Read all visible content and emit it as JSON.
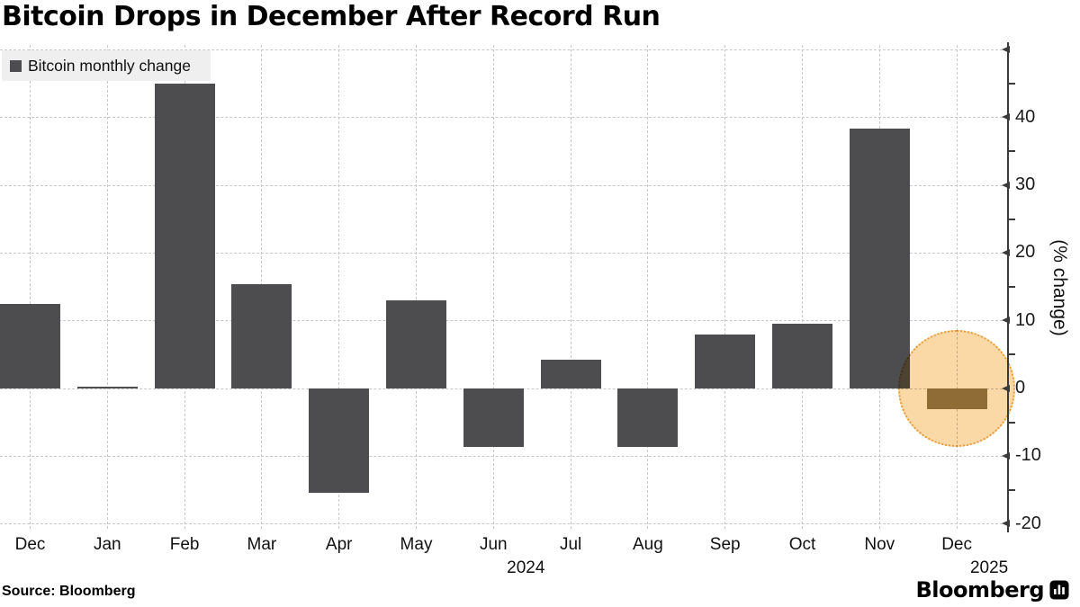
{
  "title": "Bitcoin Drops in December After Record Run",
  "legend": {
    "label": "Bitcoin monthly change"
  },
  "footer": {
    "source": "Source:  Bloomberg"
  },
  "branding": {
    "logo_text": "Bloomberg",
    "logo_icon": "bloomberg-bars-icon"
  },
  "colors": {
    "bar": "#4d4d4f",
    "highlight_bar": "#8f6c35",
    "highlight_circle_fill": "#fbd9a6",
    "highlight_circle_border": "#e89b3a",
    "gridline": "#c8c8c8",
    "axis": "#3a3a3a",
    "legend_bg": "#efefef"
  },
  "chart_data": {
    "type": "bar",
    "title": "Bitcoin Drops in December After Record Run",
    "categories": [
      "Dec",
      "Jan",
      "Feb",
      "Mar",
      "Apr",
      "May",
      "Jun",
      "Jul",
      "Aug",
      "Sep",
      "Oct",
      "Nov",
      "Dec"
    ],
    "values": [
      12.5,
      0.3,
      45,
      15.4,
      -15.4,
      13,
      -8.6,
      4.3,
      -8.6,
      8,
      9.6,
      38.4,
      -3.1
    ],
    "series_name": "Bitcoin monthly change",
    "year_labels": [
      {
        "index": 6,
        "label": "2024"
      },
      {
        "index": 12,
        "label": "2025"
      }
    ],
    "xlabel": "",
    "ylabel": "(% change)",
    "ylim": [
      -20,
      50
    ],
    "ytick_labels": [
      "40",
      "30",
      "20",
      "10",
      "0",
      "-10",
      "-20"
    ],
    "ytick_values": [
      40,
      30,
      20,
      10,
      0,
      -10,
      -20
    ],
    "arrow_tick_values": [
      50,
      40,
      30,
      20,
      10,
      0,
      -10,
      -20
    ],
    "minor_tick_values": [
      45,
      35,
      25,
      15,
      5,
      -5,
      -15
    ],
    "grid": "dashed",
    "legend_position": "top-left",
    "highlight": {
      "index": 12,
      "shape": "circle"
    }
  }
}
